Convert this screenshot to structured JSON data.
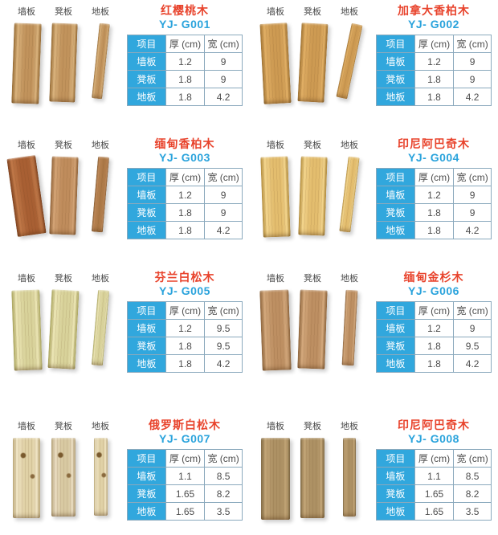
{
  "colors": {
    "accent_blue_bg": "#31a7dd",
    "code_blue": "#2aa3dc",
    "title_red": "#e8432c",
    "table_border": "#8aa9bd",
    "text_dark": "#4d4d4d",
    "background": "#ffffff"
  },
  "board_labels": [
    "墙板",
    "凳板",
    "地板"
  ],
  "table": {
    "headers": [
      "项目",
      "厚 (cm)",
      "宽 (cm)"
    ],
    "row_labels": [
      "墙板",
      "凳板",
      "地板"
    ]
  },
  "products": [
    {
      "name": "红樱桃木",
      "code": "YJ- G001",
      "values": [
        [
          "1.2",
          "9"
        ],
        [
          "1.8",
          "9"
        ],
        [
          "1.8",
          "4.2"
        ]
      ],
      "planks": [
        {
          "w": 34,
          "h": 100,
          "rot": 2,
          "c": [
            "#d9b27c",
            "#c1935c",
            "#93672f"
          ]
        },
        {
          "w": 32,
          "h": 98,
          "rot": 2,
          "c": [
            "#d9b27c",
            "#c1935c",
            "#93672f"
          ]
        },
        {
          "w": 13,
          "h": 94,
          "rot": 6,
          "c": [
            "#d9b27c",
            "#c1935c",
            "#93672f"
          ]
        }
      ]
    },
    {
      "name": "加拿大香柏木",
      "code": "YJ- G002",
      "values": [
        [
          "1.2",
          "9"
        ],
        [
          "1.8",
          "9"
        ],
        [
          "1.8",
          "4.2"
        ]
      ],
      "planks": [
        {
          "w": 34,
          "h": 100,
          "rot": -3,
          "c": [
            "#e0ae64",
            "#cd9a52",
            "#9c6f2e"
          ]
        },
        {
          "w": 33,
          "h": 98,
          "rot": 3,
          "c": [
            "#e0ae64",
            "#cd9a52",
            "#9c6f2e"
          ]
        },
        {
          "w": 14,
          "h": 94,
          "rot": 12,
          "c": [
            "#e0ae64",
            "#cd9a52",
            "#9c6f2e"
          ]
        }
      ]
    },
    {
      "name": "缅甸香柏木",
      "code": "YJ- G003",
      "values": [
        [
          "1.2",
          "9"
        ],
        [
          "1.8",
          "9"
        ],
        [
          "1.8",
          "4.2"
        ]
      ],
      "planks": [
        {
          "w": 36,
          "h": 98,
          "rot": -8,
          "c": [
            "#c07848",
            "#a85f33",
            "#7c3f1c"
          ]
        },
        {
          "w": 33,
          "h": 97,
          "rot": 2,
          "c": [
            "#d3a375",
            "#bf8c5c",
            "#8f6136"
          ]
        },
        {
          "w": 14,
          "h": 94,
          "rot": 5,
          "c": [
            "#c08a5a",
            "#ad7a48",
            "#7d5428"
          ]
        }
      ]
    },
    {
      "name": "印尼阿巴奇木",
      "code": "YJ- G004",
      "values": [
        [
          "1.2",
          "9"
        ],
        [
          "1.8",
          "9"
        ],
        [
          "1.8",
          "4.2"
        ]
      ],
      "planks": [
        {
          "w": 34,
          "h": 100,
          "rot": -2,
          "c": [
            "#f2d48c",
            "#e3bd6e",
            "#b08937"
          ]
        },
        {
          "w": 33,
          "h": 98,
          "rot": 2,
          "c": [
            "#f2d48c",
            "#e3bd6e",
            "#b08937"
          ]
        },
        {
          "w": 14,
          "h": 94,
          "rot": 7,
          "c": [
            "#f2d48c",
            "#e3bd6e",
            "#b08937"
          ]
        }
      ]
    },
    {
      "name": "芬兰白松木",
      "code": "YJ- G005",
      "values": [
        [
          "1.2",
          "9.5"
        ],
        [
          "1.8",
          "9.5"
        ],
        [
          "1.8",
          "4.2"
        ]
      ],
      "planks": [
        {
          "w": 35,
          "h": 100,
          "rot": -2,
          "c": [
            "#ebe5b4",
            "#d8d29a",
            "#a7a258"
          ]
        },
        {
          "w": 34,
          "h": 98,
          "rot": 3,
          "c": [
            "#ebe5b4",
            "#d8d29a",
            "#a7a258"
          ]
        },
        {
          "w": 14,
          "h": 94,
          "rot": 5,
          "c": [
            "#ebe5b4",
            "#d8d29a",
            "#a7a258"
          ]
        }
      ]
    },
    {
      "name": "缅甸金杉木",
      "code": "YJ- G006",
      "values": [
        [
          "1.2",
          "9"
        ],
        [
          "1.8",
          "9.5"
        ],
        [
          "1.8",
          "4.2"
        ]
      ],
      "planks": [
        {
          "w": 36,
          "h": 100,
          "rot": -2,
          "c": [
            "#d3a87c",
            "#bd8f62",
            "#8a6138"
          ]
        },
        {
          "w": 34,
          "h": 98,
          "rot": 2,
          "c": [
            "#d3a87c",
            "#bd8f62",
            "#8a6138"
          ]
        },
        {
          "w": 15,
          "h": 94,
          "rot": 3,
          "c": [
            "#d3a87c",
            "#bd8f62",
            "#8a6138"
          ]
        }
      ]
    },
    {
      "name": "俄罗斯白松木",
      "code": "YJ- G007",
      "values": [
        [
          "1.1",
          "8.5"
        ],
        [
          "1.65",
          "8.2"
        ],
        [
          "1.65",
          "3.5"
        ]
      ],
      "planks": [
        {
          "w": 34,
          "h": 100,
          "rot": 0,
          "knots": true,
          "c": [
            "#efe4c4",
            "#e0d1a6",
            "#bca877"
          ]
        },
        {
          "w": 30,
          "h": 98,
          "rot": 0,
          "knots": true,
          "c": [
            "#e8dbc0",
            "#d8c9a2",
            "#b3a074"
          ]
        },
        {
          "w": 17,
          "h": 97,
          "rot": 0,
          "knots": true,
          "c": [
            "#efe4c4",
            "#e0d1a6",
            "#bca877"
          ]
        }
      ]
    },
    {
      "name": "印尼阿巴奇木",
      "code": "YJ- G008",
      "values": [
        [
          "1.1",
          "8.5"
        ],
        [
          "1.65",
          "8.2"
        ],
        [
          "1.65",
          "3.5"
        ]
      ],
      "planks": [
        {
          "w": 36,
          "h": 102,
          "rot": 0,
          "c": [
            "#c2a577",
            "#ad9164",
            "#7d6740"
          ]
        },
        {
          "w": 30,
          "h": 100,
          "rot": 0,
          "c": [
            "#c2a577",
            "#ad9164",
            "#7d6740"
          ]
        },
        {
          "w": 16,
          "h": 98,
          "rot": 0,
          "c": [
            "#c2a577",
            "#ad9164",
            "#7d6740"
          ]
        }
      ]
    }
  ]
}
